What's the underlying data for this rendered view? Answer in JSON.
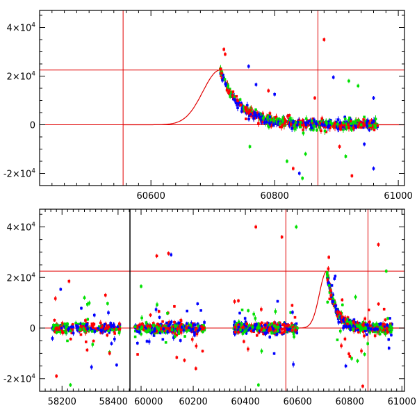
{
  "chart_data": [
    {
      "type": "scatter",
      "panel": "top",
      "title": "",
      "xlabel": "",
      "ylabel": "",
      "xlim": [
        60420,
        61010
      ],
      "ylim": [
        -25000,
        47000
      ],
      "x_ticks": [
        60600,
        60800,
        61000
      ],
      "x_tick_labels": [
        "60600",
        "60800",
        "61000"
      ],
      "y_ticks": [
        -20000,
        0,
        20000,
        40000
      ],
      "y_tick_labels": [
        {
          "mant": "-2×10",
          "exp": "4"
        },
        {
          "mant": "0",
          "exp": ""
        },
        {
          "mant": "2×10",
          "exp": "4"
        },
        {
          "mant": "4×10",
          "exp": "4"
        }
      ],
      "hlines": [
        0,
        22500
      ],
      "vlines": [
        60555,
        60870
      ],
      "model_curve": {
        "peak_x": 60712,
        "peak_y": 22500,
        "rise_sigma": 28,
        "decay_scale": 32,
        "points": [
          [
            60555,
            0
          ],
          [
            60600,
            400
          ],
          [
            60640,
            3200
          ],
          [
            60670,
            9500
          ],
          [
            60690,
            16500
          ],
          [
            60705,
            21500
          ],
          [
            60712,
            22500
          ],
          [
            60720,
            18500
          ],
          [
            60735,
            12500
          ],
          [
            60750,
            8000
          ],
          [
            60770,
            4500
          ],
          [
            60800,
            1500
          ],
          [
            60830,
            500
          ],
          [
            60870,
            100
          ]
        ]
      },
      "series": [
        {
          "name": "red",
          "color": "#ff0000",
          "approx_points": [
            [
              60712,
              22800
            ],
            [
              60718,
              31000
            ],
            [
              60720,
              29000
            ],
            [
              60730,
              18000
            ],
            [
              60750,
              9000
            ],
            [
              60800,
              2000
            ],
            [
              60880,
              35000
            ],
            [
              60950,
              -1500
            ]
          ]
        },
        {
          "name": "green",
          "color": "#00e000",
          "approx_points": [
            [
              60735,
              10000
            ],
            [
              60760,
              -9000
            ],
            [
              60820,
              -15000
            ],
            [
              60920,
              18000
            ],
            [
              60935,
              16000
            ]
          ]
        },
        {
          "name": "blue",
          "color": "#0000ff",
          "approx_points": [
            [
              60758,
              24000
            ],
            [
              60790,
              14000
            ],
            [
              60840,
              -20000
            ],
            [
              60895,
              19500
            ],
            [
              60960,
              11000
            ]
          ]
        }
      ]
    },
    {
      "type": "scatter",
      "panel": "bottom",
      "title": "",
      "xlabel": "",
      "ylabel": "",
      "xlim": [
        58120,
        61010
      ],
      "ylim": [
        -25000,
        47000
      ],
      "x_ticks": [
        58200,
        58400,
        60000,
        60200,
        60400,
        60600,
        60800,
        61000
      ],
      "x_tick_labels": [
        "58200",
        "58400",
        "60000",
        "60200",
        "60400",
        "60600",
        "60800",
        "61000"
      ],
      "y_ticks": [
        -20000,
        0,
        20000,
        40000
      ],
      "y_tick_labels": [
        {
          "mant": "-2×10",
          "exp": "4"
        },
        {
          "mant": "0",
          "exp": ""
        },
        {
          "mant": "2×10",
          "exp": "4"
        },
        {
          "mant": "4×10",
          "exp": "4"
        }
      ],
      "hlines": [
        0,
        22500
      ],
      "vlines": [
        60555,
        60870
      ],
      "segments": [
        {
          "x_start": 58120,
          "x_end": 58440
        },
        {
          "x_start": 59960,
          "x_end": 61010
        }
      ],
      "series": [
        {
          "name": "red",
          "color": "#ff0000"
        },
        {
          "name": "green",
          "color": "#00e000"
        },
        {
          "name": "blue",
          "color": "#0000ff"
        }
      ]
    }
  ]
}
